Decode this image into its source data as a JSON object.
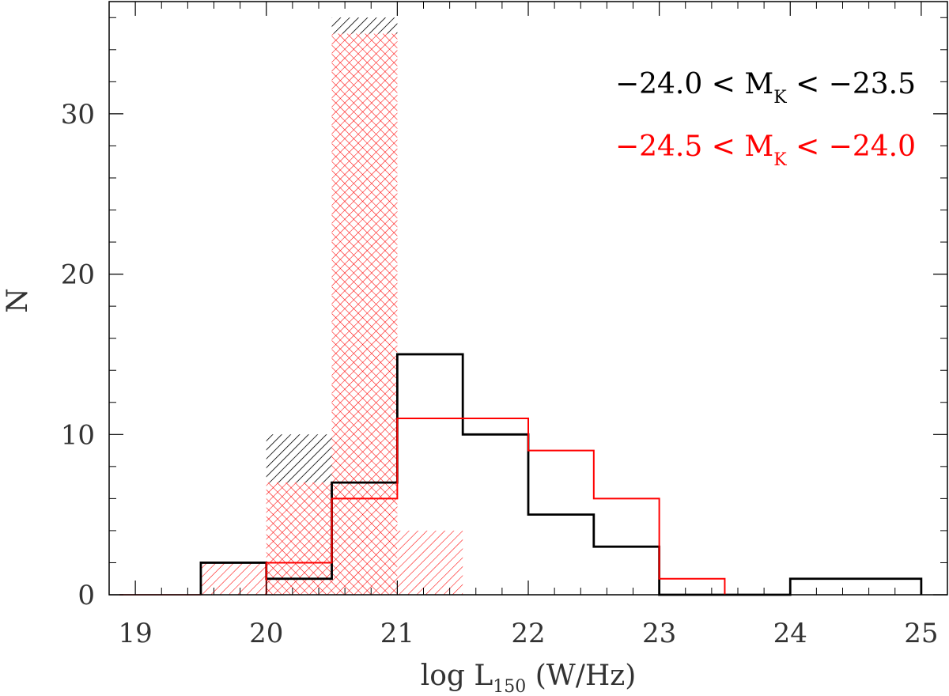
{
  "chart_data": {
    "type": "histogram",
    "xlabel": {
      "main": "log L",
      "sub": "150",
      "tail": " (W/Hz)"
    },
    "ylabel": "N",
    "xlim": [
      18.8,
      25.2
    ],
    "ylim": [
      0,
      37
    ],
    "x_ticks": [
      19,
      20,
      21,
      22,
      23,
      24,
      25
    ],
    "y_ticks": [
      0,
      10,
      20,
      30
    ],
    "bin_edges": [
      19.0,
      19.5,
      20.0,
      20.5,
      21.0,
      21.5,
      22.0,
      22.5,
      23.0,
      23.5,
      24.0,
      24.5,
      25.0
    ],
    "series": [
      {
        "name": "-24.0 < M_K < -23.5",
        "color": "#000000",
        "legend_parts": {
          "pre": "−24.0 < M",
          "sub": "K",
          "post": " < −23.5"
        },
        "counts": [
          0,
          2,
          1,
          7,
          15,
          10,
          5,
          3,
          0,
          0,
          1,
          1
        ],
        "hatched_counts": [
          0,
          0,
          10,
          36,
          0,
          0,
          0,
          0,
          0,
          0,
          0,
          0
        ]
      },
      {
        "name": "-24.5 < M_K < -24.0",
        "color": "#ff0000",
        "legend_parts": {
          "pre": "−24.5 < M",
          "sub": "K",
          "post": " < −24.0"
        },
        "counts": [
          0,
          0,
          2,
          6,
          11,
          11,
          9,
          6,
          1,
          0,
          0,
          0
        ],
        "hatched_counts": [
          0,
          2,
          7,
          35,
          4,
          0,
          0,
          0,
          0,
          0,
          0,
          0
        ]
      }
    ],
    "legend_position": "top-right",
    "grid": false
  }
}
